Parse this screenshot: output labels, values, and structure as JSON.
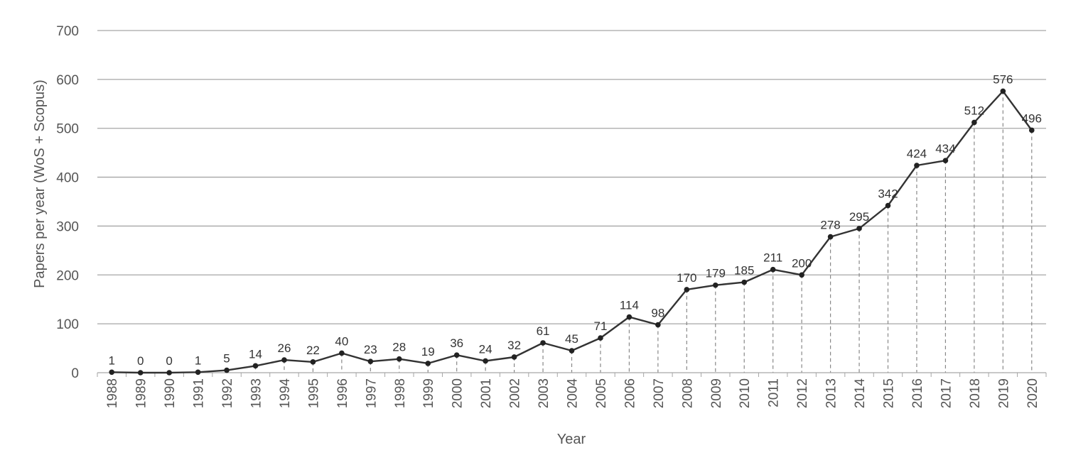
{
  "chart_data": {
    "type": "line",
    "title": "",
    "xlabel": "Year",
    "ylabel": "Papers per year (WoS + Scopus)",
    "ylim": [
      0,
      700
    ],
    "yticks": [
      0,
      100,
      200,
      300,
      400,
      500,
      600,
      700
    ],
    "grid": "horizontal",
    "x": [
      "1988",
      "1989",
      "1990",
      "1991",
      "1992",
      "1993",
      "1994",
      "1995",
      "1996",
      "1997",
      "1998",
      "1999",
      "2000",
      "2001",
      "2002",
      "2003",
      "2004",
      "2005",
      "2006",
      "2007",
      "2008",
      "2009",
      "2010",
      "2011",
      "2012",
      "2013",
      "2014",
      "2015",
      "2016",
      "2017",
      "2018",
      "2019",
      "2020"
    ],
    "values": [
      1,
      0,
      0,
      1,
      5,
      14,
      26,
      22,
      40,
      23,
      28,
      19,
      36,
      24,
      32,
      61,
      45,
      71,
      114,
      98,
      170,
      179,
      185,
      211,
      200,
      278,
      295,
      342,
      424,
      434,
      512,
      576,
      496
    ],
    "colors": {
      "line": "#333333",
      "marker": "#222222",
      "grid": "#a6a6a6",
      "drop_line": "#888888"
    }
  }
}
